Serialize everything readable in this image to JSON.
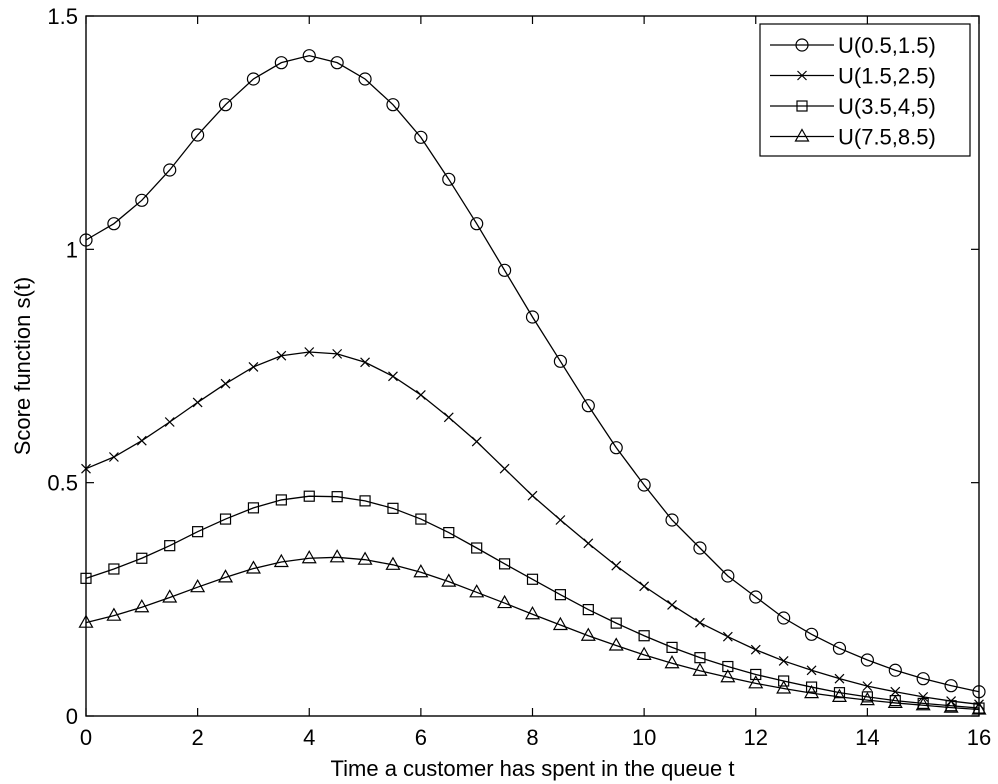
{
  "chart_data": {
    "type": "line",
    "title": "",
    "xlabel": "Time a customer has spent in the queue t",
    "ylabel": "Score function s(t)",
    "xlim": [
      0,
      16
    ],
    "ylim": [
      0,
      1.5
    ],
    "xticks": [
      0,
      2,
      4,
      6,
      8,
      10,
      12,
      14,
      16
    ],
    "yticks": [
      0,
      0.5,
      1,
      1.5
    ],
    "ytick_labels": [
      "0",
      "0.5",
      "1",
      "1.5"
    ],
    "grid": false,
    "legend_position": "top-right",
    "x": [
      0,
      0.5,
      1,
      1.5,
      2,
      2.5,
      3,
      3.5,
      4,
      4.5,
      5,
      5.5,
      6,
      6.5,
      7,
      7.5,
      8,
      8.5,
      9,
      9.5,
      10,
      10.5,
      11,
      11.5,
      12,
      12.5,
      13,
      13.5,
      14,
      14.5,
      15,
      15.5,
      16
    ],
    "series": [
      {
        "name": "U(0.5,1.5)",
        "marker": "circle",
        "values": [
          1.02,
          1.055,
          1.105,
          1.17,
          1.245,
          1.31,
          1.365,
          1.4,
          1.415,
          1.4,
          1.365,
          1.31,
          1.24,
          1.15,
          1.055,
          0.955,
          0.855,
          0.76,
          0.665,
          0.575,
          0.495,
          0.42,
          0.36,
          0.3,
          0.255,
          0.21,
          0.175,
          0.145,
          0.12,
          0.098,
          0.08,
          0.065,
          0.052
        ]
      },
      {
        "name": "U(1.5,2.5)",
        "marker": "x",
        "values": [
          0.53,
          0.555,
          0.59,
          0.63,
          0.672,
          0.712,
          0.748,
          0.772,
          0.78,
          0.776,
          0.758,
          0.728,
          0.688,
          0.64,
          0.588,
          0.53,
          0.472,
          0.42,
          0.37,
          0.322,
          0.278,
          0.238,
          0.2,
          0.17,
          0.142,
          0.118,
          0.098,
          0.08,
          0.064,
          0.052,
          0.041,
          0.032,
          0.025
        ]
      },
      {
        "name": "U(3.5,4,5)",
        "marker": "square",
        "values": [
          0.295,
          0.315,
          0.338,
          0.365,
          0.395,
          0.422,
          0.446,
          0.463,
          0.471,
          0.47,
          0.461,
          0.445,
          0.422,
          0.393,
          0.36,
          0.326,
          0.293,
          0.26,
          0.228,
          0.199,
          0.172,
          0.147,
          0.125,
          0.106,
          0.089,
          0.075,
          0.062,
          0.05,
          0.041,
          0.033,
          0.027,
          0.022,
          0.017
        ]
      },
      {
        "name": "U(7.5,8.5)",
        "marker": "triangle",
        "values": [
          0.2,
          0.215,
          0.233,
          0.254,
          0.276,
          0.297,
          0.316,
          0.33,
          0.338,
          0.34,
          0.335,
          0.324,
          0.308,
          0.288,
          0.265,
          0.242,
          0.218,
          0.195,
          0.172,
          0.151,
          0.131,
          0.113,
          0.097,
          0.083,
          0.07,
          0.059,
          0.049,
          0.041,
          0.034,
          0.028,
          0.023,
          0.018,
          0.014
        ]
      }
    ]
  }
}
